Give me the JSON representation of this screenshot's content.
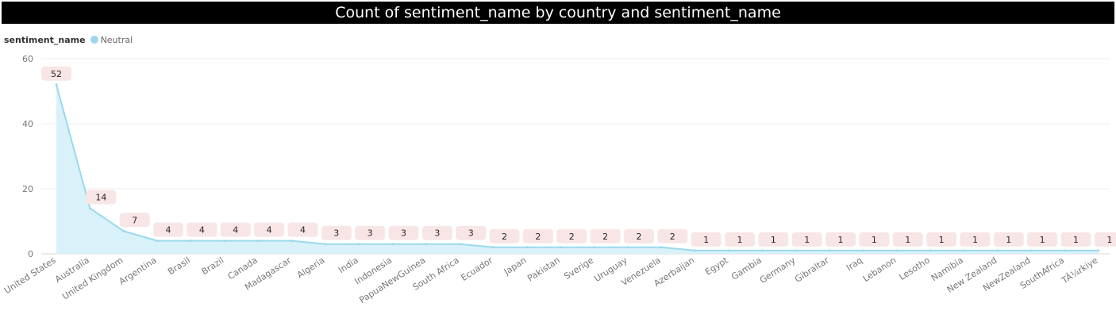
{
  "title": "Count of sentiment_name by country and sentiment_name",
  "legend": {
    "title": "sentiment_name",
    "entry": "Neutral"
  },
  "colors": {
    "line": "#9ad9ec",
    "area": "#d9f1f9",
    "label_bg": "#f8e6e6",
    "title_bg": "#000000"
  },
  "chart_data": {
    "type": "area",
    "title": "Count of sentiment_name by country and sentiment_name",
    "xlabel": "",
    "ylabel": "",
    "ylim": [
      0,
      60
    ],
    "yticks": [
      0,
      20,
      40,
      60
    ],
    "grid": true,
    "legend_position": "top-left",
    "categories": [
      "United States",
      "Australia",
      "United Kingdom",
      "Argentina",
      "Brasil",
      "Brazil",
      "Canada",
      "Madagascar",
      "Algeria",
      "India",
      "Indonesia",
      "PapuaNewGuinea",
      "South Africa",
      "Ecuador",
      "Japan",
      "Pakistan",
      "Sverige",
      "Uruguay",
      "Venezuela",
      "Azerbaijan",
      "Egypt",
      "Gambia",
      "Germany",
      "Gibraltar",
      "Iraq",
      "Lebanon",
      "Lesotho",
      "Namibia",
      "New Zealand",
      "NewZealand",
      "SouthAfrica",
      "TÃ¼rkiye"
    ],
    "series": [
      {
        "name": "Neutral",
        "values": [
          52,
          14,
          7,
          4,
          4,
          4,
          4,
          4,
          3,
          3,
          3,
          3,
          3,
          2,
          2,
          2,
          2,
          2,
          2,
          1,
          1,
          1,
          1,
          1,
          1,
          1,
          1,
          1,
          1,
          1,
          1,
          1
        ]
      }
    ]
  }
}
